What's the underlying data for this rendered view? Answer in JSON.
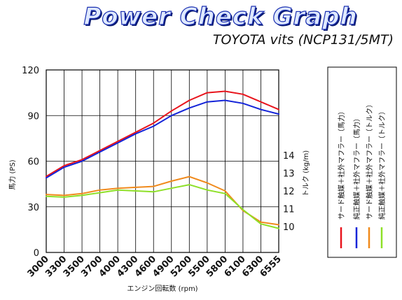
{
  "header": {
    "logo_text": "Power Check Graph",
    "subtitle": "TOYOTA vits (NCP131/5MT)"
  },
  "chart_data": {
    "type": "line",
    "title": "Power Check Graph",
    "subtitle": "TOYOTA vits (NCP131/5MT)",
    "xlabel": "エンジン回転数 (rpm)",
    "ylabel_left": "馬力 (PS)",
    "ylabel_right": "トルク (kg/m)",
    "x_tick_labels": [
      "3000",
      "3300",
      "3500",
      "3700",
      "4000",
      "4300",
      "4600",
      "4900",
      "5200",
      "5500",
      "5800",
      "6100",
      "6300",
      "6555"
    ],
    "y_left_ticks": [
      "0",
      "30",
      "60",
      "90",
      "120"
    ],
    "y_right_ticks": [
      "10",
      "11",
      "12",
      "13",
      "14"
    ],
    "ylim_left": [
      0,
      120
    ],
    "ylim_right_labeled": [
      10,
      14
    ],
    "grid": true,
    "legend_position": "right",
    "series": [
      {
        "name": "サード触媒＋社外マフラー（馬力）",
        "axis": "left",
        "color": "#e8141c",
        "x": [
          3000,
          3300,
          3500,
          3700,
          4000,
          4300,
          4600,
          4900,
          5200,
          5500,
          5800,
          6100,
          6300,
          6555
        ],
        "y": [
          50,
          57,
          61,
          67,
          73,
          79,
          85,
          93,
          100,
          105,
          106,
          104,
          99,
          94
        ]
      },
      {
        "name": "純正触媒＋社外マフラー（馬力）",
        "axis": "left",
        "color": "#1424d8",
        "x": [
          3000,
          3300,
          3500,
          3700,
          4000,
          4300,
          4600,
          4900,
          5200,
          5500,
          5800,
          6100,
          6300,
          6555
        ],
        "y": [
          49,
          56,
          60,
          66,
          72,
          78,
          83,
          90,
          95,
          99,
          100,
          98,
          94,
          91
        ]
      },
      {
        "name": "サード触媒＋社外マフラー（トルク）",
        "axis": "right",
        "color": "#f08a1c",
        "x": [
          3000,
          3300,
          3500,
          3700,
          4000,
          4300,
          4600,
          4900,
          5200,
          5500,
          5800,
          6100,
          6300,
          6555
        ],
        "y": [
          11.8,
          11.75,
          11.85,
          12.05,
          12.15,
          12.2,
          12.25,
          12.55,
          12.8,
          12.45,
          12.0,
          10.9,
          10.25,
          10.1
        ]
      },
      {
        "name": "純正触媒＋社外マフラー（トルク）",
        "axis": "right",
        "color": "#8ee028",
        "x": [
          3000,
          3300,
          3500,
          3700,
          4000,
          4300,
          4600,
          4900,
          5200,
          5500,
          5800,
          6100,
          6300,
          6555
        ],
        "y": [
          11.7,
          11.65,
          11.75,
          11.9,
          12.05,
          12.0,
          11.95,
          12.15,
          12.35,
          12.05,
          11.85,
          10.95,
          10.15,
          9.9
        ]
      }
    ]
  }
}
